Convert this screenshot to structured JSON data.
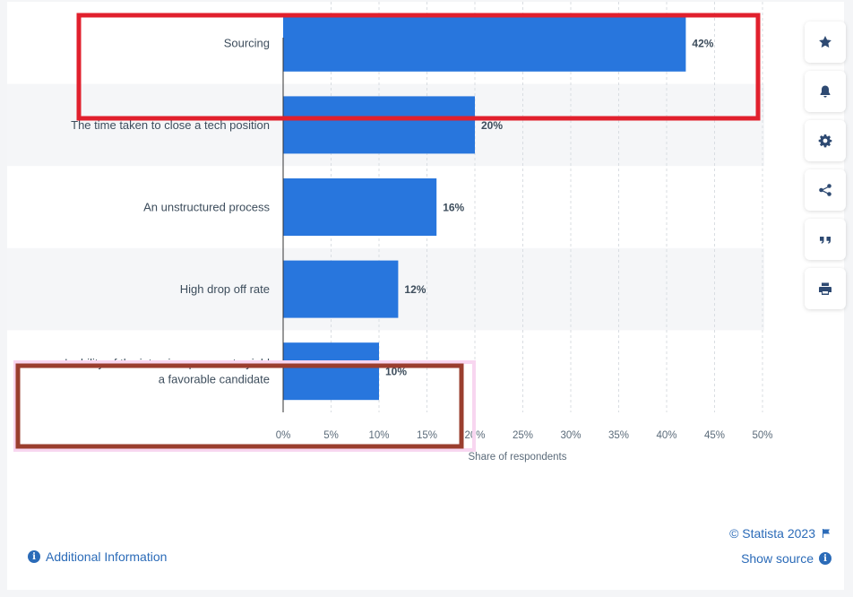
{
  "chart_data": {
    "type": "bar",
    "orientation": "horizontal",
    "categories": [
      "Sourcing",
      "The time taken to close a tech position",
      "An unstructured process",
      "High drop off rate",
      "Inability of the interview process to yield a favorable candidate"
    ],
    "category_lines": [
      [
        "Sourcing"
      ],
      [
        "The time taken to close a tech position"
      ],
      [
        "An unstructured process"
      ],
      [
        "High drop off rate"
      ],
      [
        "Inability of the interview process to yield",
        "a favorable candidate"
      ]
    ],
    "values": [
      42,
      20,
      16,
      12,
      10
    ],
    "value_labels": [
      "42%",
      "20%",
      "16%",
      "12%",
      "10%"
    ],
    "xlabel": "Share of respondents",
    "xlim": [
      0,
      50
    ],
    "xticks": [
      0,
      5,
      10,
      15,
      20,
      25,
      30,
      35,
      40,
      45,
      50
    ],
    "xtick_labels": [
      "0%",
      "5%",
      "10%",
      "15%",
      "20%",
      "25%",
      "30%",
      "35%",
      "40%",
      "45%",
      "50%"
    ],
    "grid": "vertical dashed",
    "colors": {
      "bar": "#2876dd",
      "band": "#f5f6f8",
      "highlight_red": "#e1202d",
      "highlight_brown": "#9a3e2e",
      "highlight_pink": "#f8d6f0"
    }
  },
  "toolbar": {
    "icons": [
      "star-icon",
      "bell-icon",
      "gear-icon",
      "share-icon",
      "quote-icon",
      "print-icon"
    ]
  },
  "footer": {
    "additional_info": "Additional Information",
    "copyright": "© Statista 2023",
    "show_source": "Show source"
  }
}
